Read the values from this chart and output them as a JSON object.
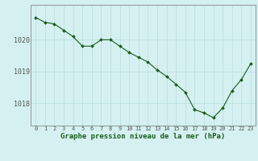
{
  "x": [
    0,
    1,
    2,
    3,
    4,
    5,
    6,
    7,
    8,
    9,
    10,
    11,
    12,
    13,
    14,
    15,
    16,
    17,
    18,
    19,
    20,
    21,
    22,
    23
  ],
  "y": [
    1020.7,
    1020.55,
    1020.5,
    1020.3,
    1020.1,
    1019.8,
    1019.8,
    1020.0,
    1020.0,
    1019.8,
    1019.6,
    1019.45,
    1019.3,
    1019.05,
    1018.85,
    1018.6,
    1018.35,
    1017.8,
    1017.7,
    1017.55,
    1017.85,
    1018.4,
    1018.75,
    1019.25
  ],
  "line_color": "#1a5c1a",
  "marker_color": "#1a5c1a",
  "bg_color": "#d4f0f0",
  "grid_color": "#b8dede",
  "axis_color": "#888888",
  "xlabel": "Graphe pression niveau de la mer (hPa)",
  "xlabel_color": "#1a5c1a",
  "ylabel_ticks": [
    1018,
    1019,
    1020
  ],
  "ylim": [
    1017.3,
    1021.1
  ],
  "xlim": [
    -0.5,
    23.5
  ],
  "tick_label_color": "#555555",
  "xtick_fontsize": 5.0,
  "ytick_fontsize": 6.0,
  "xlabel_fontsize": 6.5
}
